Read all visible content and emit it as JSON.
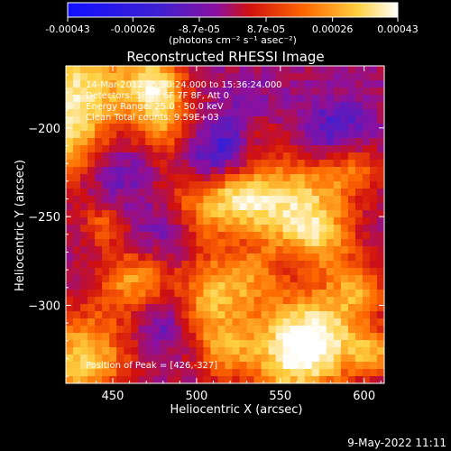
{
  "chart_data": {
    "type": "heatmap",
    "title": "Reconstructed RHESSI Image",
    "xlabel": "Heliocentric X (arcsec)",
    "ylabel": "Heliocentric Y (arcsec)",
    "xlim": [
      422,
      612
    ],
    "ylim": [
      -344,
      -165
    ],
    "x_ticks": [
      "450",
      "500",
      "550",
      "600"
    ],
    "x_tick_values": [
      450,
      500,
      550,
      600
    ],
    "y_ticks": [
      "-200",
      "-250",
      "-300"
    ],
    "y_tick_values": [
      -200,
      -250,
      -300
    ],
    "colorbar": {
      "tick_labels": [
        "-0.00043",
        "-0.00026",
        "-8.7e-05",
        "8.7e-05",
        "0.00026",
        "0.00043"
      ],
      "tick_values": [
        -0.00043,
        -0.00026,
        -8.7e-05,
        8.7e-05,
        0.00026,
        0.00043
      ],
      "range": [
        -0.00043,
        0.00043
      ],
      "unit_label": "(photons cm⁻² s⁻¹ asec⁻²)",
      "colors": [
        "#1010ff",
        "#4020d0",
        "#8a10a0",
        "#d01010",
        "#ff6a00",
        "#ffd040",
        "#ffffff"
      ]
    },
    "annotations": {
      "time": "14-Mar-2012 15:30:24.000 to 15:36:24.000",
      "detectors": "Detectors: 3F 5F 6F 7F 8F, Att 0",
      "energy": "Energy Range: 25.0 - 50.0 keV",
      "method": "Clean     Total counts: 9.59E+03",
      "peak": "Position of Peak = [426,-327]"
    },
    "grid": false,
    "legend": "none"
  },
  "footer": {
    "date": "9-May-2022 11:11"
  }
}
